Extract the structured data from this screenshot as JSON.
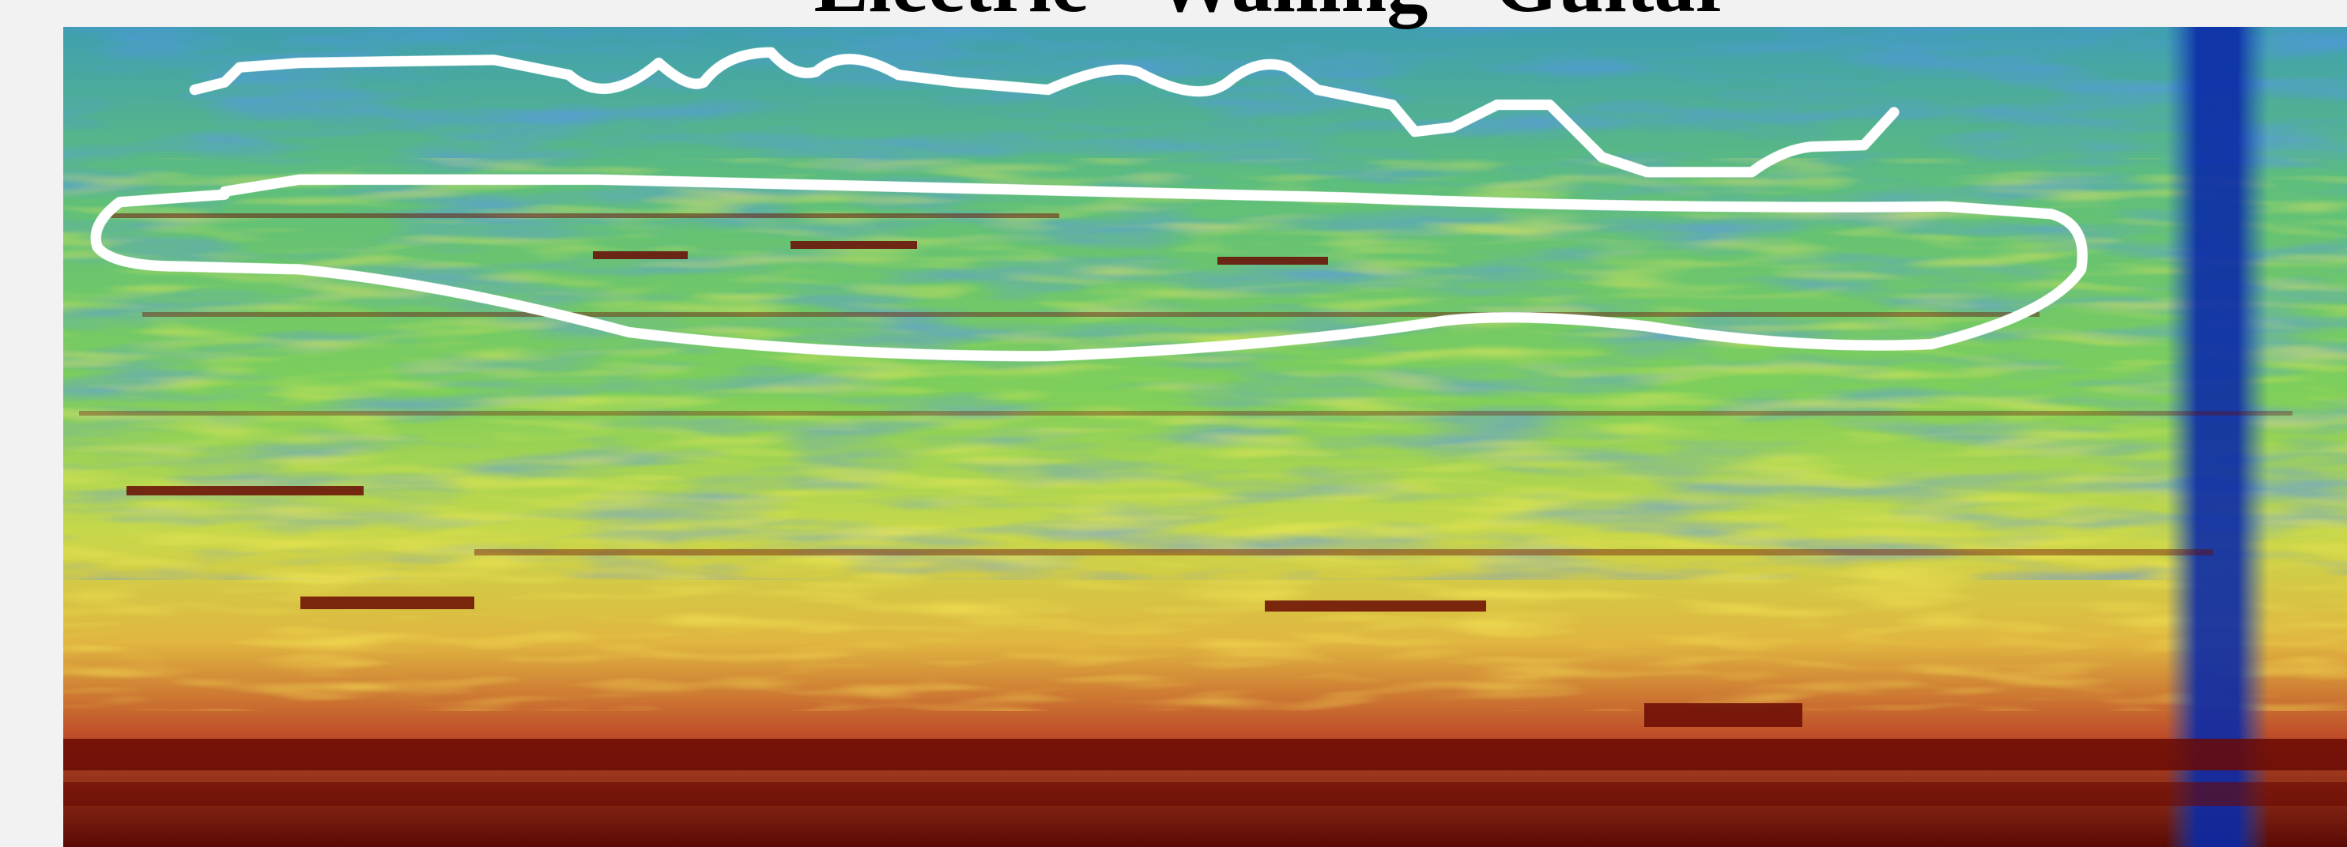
{
  "title": "Electric \"Wailing\" Guitar"
}
